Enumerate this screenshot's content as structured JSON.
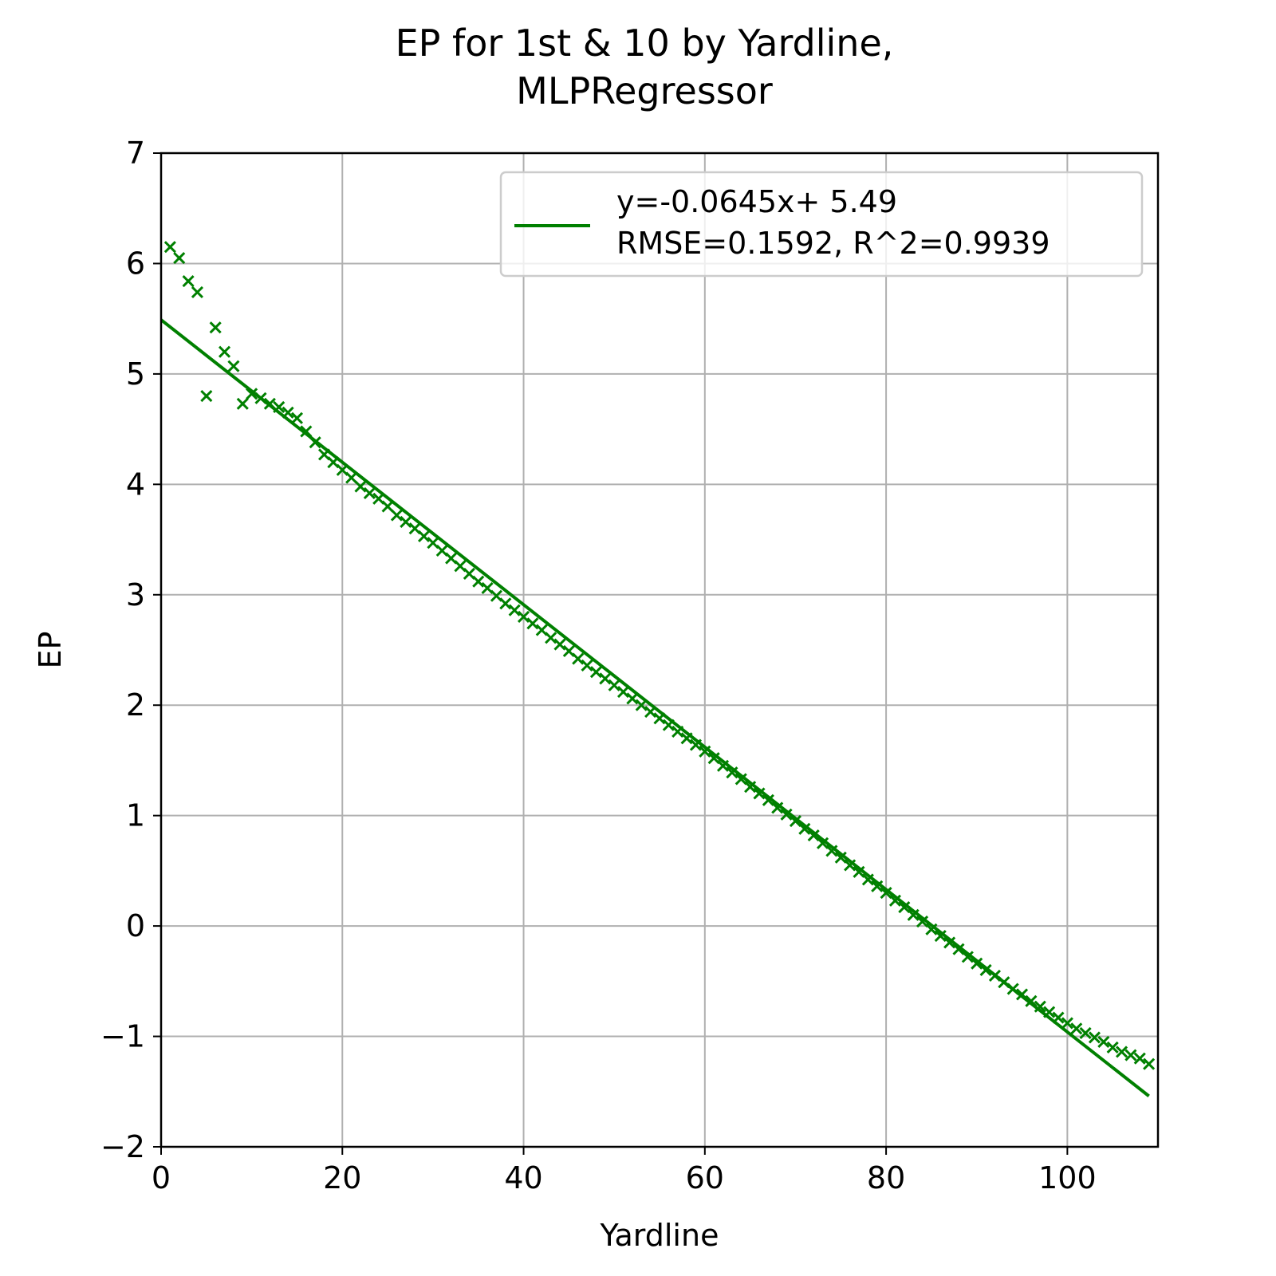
{
  "chart_data": {
    "type": "scatter",
    "title": [
      "EP for 1st & 10 by Yardline,",
      "MLPRegressor"
    ],
    "xlabel": "Yardline",
    "ylabel": "EP",
    "xlim": [
      0,
      110
    ],
    "ylim": [
      -2,
      7
    ],
    "xticks": [
      0,
      20,
      40,
      60,
      80,
      100
    ],
    "yticks": [
      -2,
      -1,
      0,
      1,
      2,
      3,
      4,
      5,
      6,
      7
    ],
    "xtick_labels": [
      "0",
      "20",
      "40",
      "60",
      "80",
      "100"
    ],
    "ytick_labels": [
      "−2",
      "−1",
      "0",
      "1",
      "2",
      "3",
      "4",
      "5",
      "6",
      "7"
    ],
    "grid": true,
    "legend_position": "top-right",
    "color": "#008000",
    "series": [
      {
        "type": "scatter",
        "marker": "x",
        "points": [
          [
            1,
            6.15
          ],
          [
            2,
            6.05
          ],
          [
            3,
            5.84
          ],
          [
            4,
            5.74
          ],
          [
            5,
            4.8
          ],
          [
            6,
            5.42
          ],
          [
            7,
            5.2
          ],
          [
            8,
            5.07
          ],
          [
            9,
            4.73
          ],
          [
            10,
            4.82
          ],
          [
            11,
            4.78
          ],
          [
            12,
            4.73
          ],
          [
            13,
            4.7
          ],
          [
            14,
            4.65
          ],
          [
            15,
            4.6
          ],
          [
            16,
            4.48
          ],
          [
            17,
            4.38
          ],
          [
            18,
            4.27
          ],
          [
            19,
            4.2
          ],
          [
            20,
            4.13
          ],
          [
            21,
            4.06
          ],
          [
            22,
            3.98
          ],
          [
            23,
            3.92
          ],
          [
            24,
            3.87
          ],
          [
            25,
            3.8
          ],
          [
            26,
            3.72
          ],
          [
            27,
            3.66
          ],
          [
            28,
            3.6
          ],
          [
            29,
            3.53
          ],
          [
            30,
            3.47
          ],
          [
            31,
            3.4
          ],
          [
            32,
            3.33
          ],
          [
            33,
            3.26
          ],
          [
            34,
            3.19
          ],
          [
            35,
            3.12
          ],
          [
            36,
            3.06
          ],
          [
            37,
            2.99
          ],
          [
            38,
            2.92
          ],
          [
            39,
            2.86
          ],
          [
            40,
            2.8
          ],
          [
            41,
            2.74
          ],
          [
            42,
            2.68
          ],
          [
            43,
            2.61
          ],
          [
            44,
            2.55
          ],
          [
            45,
            2.49
          ],
          [
            46,
            2.42
          ],
          [
            47,
            2.36
          ],
          [
            48,
            2.3
          ],
          [
            49,
            2.24
          ],
          [
            50,
            2.18
          ],
          [
            51,
            2.12
          ],
          [
            52,
            2.06
          ],
          [
            53,
            2.0
          ],
          [
            54,
            1.94
          ],
          [
            55,
            1.88
          ],
          [
            56,
            1.82
          ],
          [
            57,
            1.76
          ],
          [
            58,
            1.7
          ],
          [
            59,
            1.64
          ],
          [
            60,
            1.58
          ],
          [
            61,
            1.52
          ],
          [
            62,
            1.45
          ],
          [
            63,
            1.39
          ],
          [
            64,
            1.33
          ],
          [
            65,
            1.26
          ],
          [
            66,
            1.2
          ],
          [
            67,
            1.14
          ],
          [
            68,
            1.07
          ],
          [
            69,
            1.01
          ],
          [
            70,
            0.95
          ],
          [
            71,
            0.88
          ],
          [
            72,
            0.82
          ],
          [
            73,
            0.75
          ],
          [
            74,
            0.68
          ],
          [
            75,
            0.62
          ],
          [
            76,
            0.55
          ],
          [
            77,
            0.49
          ],
          [
            78,
            0.42
          ],
          [
            79,
            0.36
          ],
          [
            80,
            0.3
          ],
          [
            81,
            0.23
          ],
          [
            82,
            0.17
          ],
          [
            83,
            0.1
          ],
          [
            84,
            0.04
          ],
          [
            85,
            -0.03
          ],
          [
            86,
            -0.09
          ],
          [
            87,
            -0.15
          ],
          [
            88,
            -0.21
          ],
          [
            89,
            -0.28
          ],
          [
            90,
            -0.34
          ],
          [
            91,
            -0.4
          ],
          [
            92,
            -0.45
          ],
          [
            93,
            -0.51
          ],
          [
            94,
            -0.57
          ],
          [
            95,
            -0.62
          ],
          [
            96,
            -0.68
          ],
          [
            97,
            -0.73
          ],
          [
            98,
            -0.78
          ],
          [
            99,
            -0.83
          ],
          [
            100,
            -0.88
          ],
          [
            101,
            -0.93
          ],
          [
            102,
            -0.97
          ],
          [
            103,
            -1.01
          ],
          [
            104,
            -1.05
          ],
          [
            105,
            -1.1
          ],
          [
            106,
            -1.14
          ],
          [
            107,
            -1.17
          ],
          [
            108,
            -1.2
          ],
          [
            109,
            -1.25
          ]
        ]
      },
      {
        "type": "line",
        "name": "y=-0.0645x+ 5.49\nRMSE=0.1592, R^2=0.9939",
        "legend_lines": [
          "y=-0.0645x+ 5.49",
          "RMSE=0.1592, R^2=0.9939"
        ],
        "slope": -0.0645,
        "intercept": 5.49,
        "x_range": [
          0,
          109
        ]
      }
    ]
  }
}
